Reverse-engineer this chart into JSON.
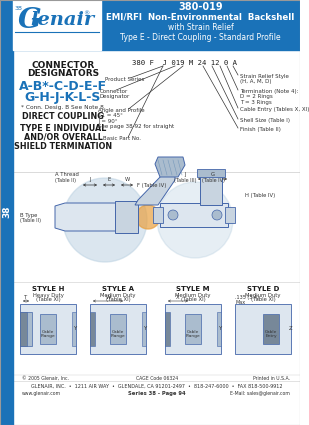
{
  "title_part_number": "380-019",
  "title_line1": "EMI/RFI  Non-Environmental  Backshell",
  "title_line2": "with Strain Relief",
  "title_line3": "Type E - Direct Coupling - Standard Profile",
  "header_bg": "#1a72b8",
  "header_text_color": "#ffffff",
  "side_tab_text": "38",
  "blue_color": "#1a72b8",
  "body_bg": "#ffffff",
  "style_labels": [
    "STYLE H",
    "STYLE A",
    "STYLE M",
    "STYLE D"
  ],
  "style_subtitles": [
    "Heavy Duty\n(Table XI)",
    "Medium Duty\n(Table XI)",
    "Medium Duty\n(Table XI)",
    "Medium Duty\n(Table XI)"
  ],
  "footer_copy": "© 2005 Glenair, Inc.",
  "footer_cage": "CAGE Code 06324",
  "footer_printed": "Printed in U.S.A.",
  "footer_address": "GLENAIR, INC.  •  1211 AIR WAY  •  GLENDALE, CA 91201-2497  •  818-247-6000  •  FAX 818-500-9912",
  "footer_web": "www.glenair.com",
  "footer_series": "Series 38 - Page 94",
  "footer_email": "E-Mail: sales@glenair.com"
}
